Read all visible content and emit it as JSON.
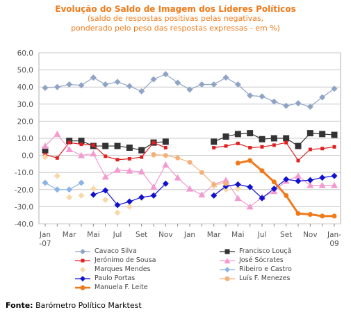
{
  "chart_data": {
    "type": "line",
    "title": "Evolução do Saldo  de Imagem dos Líderes Políticos",
    "subtitle_line1": "(saldo de respostas positivas pelas negativas,",
    "subtitle_line2": "ponderado pelo peso das respostas expressas - em %)",
    "ylim": [
      -40,
      60
    ],
    "yticks": [
      "60.0",
      "50.0",
      "40.0",
      "30.0",
      "20.0",
      "10.0",
      "0.0",
      "-10.0",
      "-20.0",
      "-30.0",
      "-40.0"
    ],
    "ytick_values": [
      60,
      50,
      40,
      30,
      20,
      10,
      0,
      -10,
      -20,
      -30,
      -40
    ],
    "x_labels": [
      {
        "i": 0,
        "line1": "Jan",
        "line2": "-07"
      },
      {
        "i": 2,
        "line1": "Mar",
        "line2": ""
      },
      {
        "i": 4,
        "line1": "Mai",
        "line2": ""
      },
      {
        "i": 6,
        "line1": "Jul",
        "line2": ""
      },
      {
        "i": 8,
        "line1": "Set",
        "line2": ""
      },
      {
        "i": 10,
        "line1": "Nov",
        "line2": ""
      },
      {
        "i": 12,
        "line1": "Jan",
        "line2": ""
      },
      {
        "i": 14,
        "line1": "Mar",
        "line2": ""
      },
      {
        "i": 16,
        "line1": "Mai",
        "line2": ""
      },
      {
        "i": 18,
        "line1": "Jul",
        "line2": ""
      },
      {
        "i": 20,
        "line1": "Set",
        "line2": ""
      },
      {
        "i": 22,
        "line1": "Nov",
        "line2": ""
      },
      {
        "i": 24,
        "line1": "Jan-",
        "line2": "09"
      }
    ],
    "grid": true,
    "legend_position": "bottom",
    "series": [
      {
        "name": "Cavaco Silva",
        "color": "#8fa4c4",
        "marker": "diamond",
        "line": true,
        "points": [
          [
            0,
            39.5
          ],
          [
            1,
            40
          ],
          [
            2,
            41.5
          ],
          [
            3,
            41
          ],
          [
            4,
            45.5
          ],
          [
            5,
            41.5
          ],
          [
            6,
            43
          ],
          [
            7,
            40.5
          ],
          [
            8,
            37.5
          ],
          [
            9,
            44.5
          ],
          [
            10,
            47.5
          ],
          [
            11,
            42.5
          ],
          [
            12,
            38.5
          ],
          [
            13,
            41.5
          ],
          [
            14,
            41.5
          ],
          [
            15,
            45.5
          ],
          [
            16,
            41.5
          ],
          [
            17,
            35
          ],
          [
            18,
            34.5
          ],
          [
            19,
            31.5
          ],
          [
            20,
            29
          ],
          [
            21,
            30.5
          ],
          [
            22,
            28.5
          ],
          [
            23,
            34
          ],
          [
            24,
            39
          ]
        ]
      },
      {
        "name": "Francisco Louçã",
        "color": "#333333",
        "marker": "square",
        "line": true,
        "points": [
          [
            0,
            3
          ],
          [
            1,
            null
          ],
          [
            2,
            8.5
          ],
          [
            3,
            8.5
          ],
          [
            4,
            5.5
          ],
          [
            5,
            5.5
          ],
          [
            6,
            5.5
          ],
          [
            7,
            4.5
          ],
          [
            8,
            3
          ],
          [
            9,
            7.5
          ],
          [
            10,
            8
          ],
          [
            11,
            null
          ],
          [
            12,
            null
          ],
          [
            13,
            null
          ],
          [
            14,
            8
          ],
          [
            15,
            11
          ],
          [
            16,
            12.5
          ],
          [
            17,
            13
          ],
          [
            18,
            9.5
          ],
          [
            19,
            10
          ],
          [
            20,
            10
          ],
          [
            21,
            5.5
          ],
          [
            22,
            13
          ],
          [
            23,
            12.5
          ],
          [
            24,
            12
          ]
        ]
      },
      {
        "name": "Jerónimo de Sousa",
        "color": "#e02020",
        "marker": "square-small",
        "line": true,
        "points": [
          [
            0,
            0.5
          ],
          [
            1,
            -1.5
          ],
          [
            2,
            7.5
          ],
          [
            3,
            6.5
          ],
          [
            4,
            6
          ],
          [
            5,
            -0.5
          ],
          [
            6,
            -2.5
          ],
          [
            7,
            -2
          ],
          [
            8,
            -1
          ],
          [
            9,
            7.5
          ],
          [
            10,
            4.5
          ],
          [
            11,
            null
          ],
          [
            12,
            null
          ],
          [
            13,
            null
          ],
          [
            14,
            4.5
          ],
          [
            15,
            5.5
          ],
          [
            16,
            7
          ],
          [
            17,
            4.5
          ],
          [
            18,
            5
          ],
          [
            19,
            6
          ],
          [
            20,
            7.5
          ],
          [
            21,
            -3
          ],
          [
            22,
            3.5
          ],
          [
            23,
            4
          ],
          [
            24,
            5
          ]
        ]
      },
      {
        "name": "José Sócrates",
        "color": "#f39ad0",
        "marker": "triangle",
        "line": true,
        "points": [
          [
            0,
            5.5
          ],
          [
            1,
            12.5
          ],
          [
            2,
            3.5
          ],
          [
            3,
            0
          ],
          [
            4,
            1
          ],
          [
            5,
            -12.5
          ],
          [
            6,
            -8.5
          ],
          [
            7,
            -9
          ],
          [
            8,
            -9.5
          ],
          [
            9,
            -18.5
          ],
          [
            10,
            -5.5
          ],
          [
            11,
            -13
          ],
          [
            12,
            -19.5
          ],
          [
            13,
            -23
          ],
          [
            14,
            -17
          ],
          [
            15,
            -14.5
          ],
          [
            16,
            -25
          ],
          [
            17,
            -30
          ],
          [
            18,
            -24.5
          ],
          [
            19,
            -21
          ],
          [
            20,
            -15
          ],
          [
            21,
            -12
          ],
          [
            22,
            -17.5
          ],
          [
            23,
            -17.5
          ],
          [
            24,
            -17.5
          ]
        ]
      },
      {
        "name": "Marques Mendes",
        "color": "#f8d8a8",
        "marker": "diamond",
        "line": false,
        "points": [
          [
            0,
            -1
          ],
          [
            1,
            -12
          ],
          [
            2,
            -24.5
          ],
          [
            3,
            -23.5
          ],
          [
            4,
            -19.5
          ],
          [
            5,
            -26
          ],
          [
            6,
            -33.5
          ],
          [
            7,
            -30
          ],
          [
            8,
            -25
          ],
          [
            9,
            0
          ],
          [
            10,
            null
          ],
          [
            11,
            null
          ],
          [
            12,
            null
          ],
          [
            13,
            null
          ],
          [
            14,
            -18
          ],
          [
            15,
            -20
          ],
          [
            16,
            -19.5
          ]
        ]
      },
      {
        "name": "Ribeiro e Castro",
        "color": "#8ab4e8",
        "marker": "diamond",
        "line": true,
        "points": [
          [
            0,
            -16
          ],
          [
            1,
            -20
          ],
          [
            2,
            -20
          ],
          [
            3,
            -16
          ]
        ]
      },
      {
        "name": "Paulo Portas",
        "color": "#1010d0",
        "marker": "diamond",
        "line": true,
        "points": [
          [
            0,
            null
          ],
          [
            1,
            null
          ],
          [
            2,
            null
          ],
          [
            3,
            null
          ],
          [
            4,
            -23
          ],
          [
            5,
            -20.5
          ],
          [
            6,
            -29
          ],
          [
            7,
            -27
          ],
          [
            8,
            -24.5
          ],
          [
            9,
            -23.5
          ],
          [
            10,
            -16.5
          ],
          [
            11,
            null
          ],
          [
            12,
            null
          ],
          [
            13,
            null
          ],
          [
            14,
            -23.5
          ],
          [
            15,
            -18
          ],
          [
            16,
            -17
          ],
          [
            17,
            -18.5
          ],
          [
            18,
            -25
          ],
          [
            19,
            -19.5
          ],
          [
            20,
            -14
          ],
          [
            21,
            -15
          ],
          [
            22,
            -14.5
          ],
          [
            23,
            -13
          ],
          [
            24,
            -12
          ]
        ]
      },
      {
        "name": "Luís F. Menezes",
        "color": "#f4b27a",
        "marker": "circle",
        "line": true,
        "points": [
          [
            0,
            null
          ],
          [
            1,
            null
          ],
          [
            2,
            null
          ],
          [
            3,
            null
          ],
          [
            4,
            null
          ],
          [
            5,
            null
          ],
          [
            6,
            null
          ],
          [
            7,
            null
          ],
          [
            8,
            null
          ],
          [
            9,
            0.5
          ],
          [
            10,
            0
          ],
          [
            11,
            -1.5
          ],
          [
            12,
            -4
          ],
          [
            13,
            -10
          ],
          [
            14,
            -17
          ],
          [
            15,
            -16.5
          ]
        ]
      },
      {
        "name": "Manuela F. Leite",
        "color": "#f07a1a",
        "marker": "circle",
        "line": true,
        "bold": true,
        "points": [
          [
            0,
            null
          ],
          [
            1,
            null
          ],
          [
            2,
            null
          ],
          [
            3,
            null
          ],
          [
            4,
            null
          ],
          [
            5,
            null
          ],
          [
            6,
            null
          ],
          [
            7,
            null
          ],
          [
            8,
            null
          ],
          [
            9,
            null
          ],
          [
            10,
            null
          ],
          [
            11,
            null
          ],
          [
            12,
            null
          ],
          [
            13,
            null
          ],
          [
            14,
            null
          ],
          [
            15,
            null
          ],
          [
            16,
            -4.5
          ],
          [
            17,
            -3
          ],
          [
            18,
            -9
          ],
          [
            19,
            -15.5
          ],
          [
            20,
            -23.5
          ],
          [
            21,
            -34
          ],
          [
            22,
            -34.5
          ],
          [
            23,
            -35.5
          ],
          [
            24,
            -35.5
          ]
        ]
      }
    ]
  },
  "legend": {
    "col1": [
      "Cavaco Silva",
      "Jerónimo de Sousa",
      "Marques Mendes",
      "Paulo Portas",
      "Manuela F. Leite"
    ],
    "col2": [
      "Francisco Louçã",
      "José Sócrates",
      "Ribeiro e Castro",
      "Luís F. Menezes"
    ]
  },
  "source": {
    "label": "Fonte:",
    "text": " Barómetro Político Marktest"
  }
}
